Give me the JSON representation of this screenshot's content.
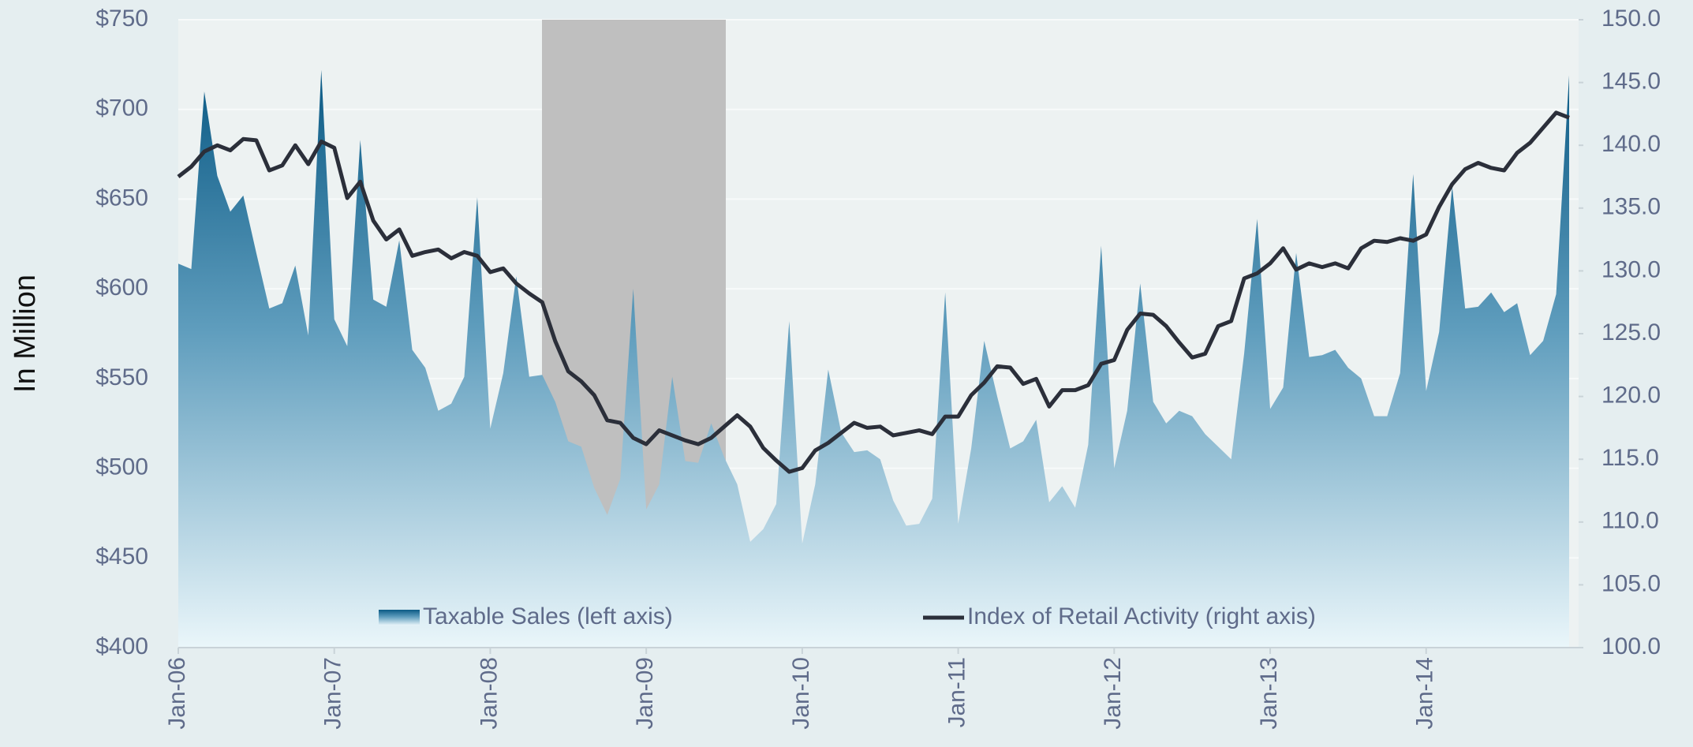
{
  "chart_data": {
    "type": "combo",
    "ylabel": "In Million",
    "categories": [
      "Jan-06",
      null,
      null,
      null,
      null,
      null,
      null,
      null,
      null,
      null,
      null,
      null,
      "Jan-07",
      null,
      null,
      null,
      null,
      null,
      null,
      null,
      null,
      null,
      null,
      null,
      "Jan-08",
      null,
      null,
      null,
      null,
      null,
      null,
      null,
      null,
      null,
      null,
      null,
      "Jan-09",
      null,
      null,
      null,
      null,
      null,
      null,
      null,
      null,
      null,
      null,
      null,
      "Jan-10",
      null,
      null,
      null,
      null,
      null,
      null,
      null,
      null,
      null,
      null,
      null,
      "Jan-11",
      null,
      null,
      null,
      null,
      null,
      null,
      null,
      null,
      null,
      null,
      null,
      "Jan-12",
      null,
      null,
      null,
      null,
      null,
      null,
      null,
      null,
      null,
      null,
      null,
      "Jan-13",
      null,
      null,
      null,
      null,
      null,
      null,
      null,
      null,
      null,
      null,
      null,
      "Jan-14",
      null,
      null,
      null,
      null,
      null,
      null,
      null,
      null,
      null,
      null,
      null
    ],
    "series": [
      {
        "name": "Taxable Sales (left axis)",
        "type": "area",
        "color": "#0b5a85",
        "axis": "y",
        "values": [
          614,
          611,
          710,
          663,
          643,
          652,
          620,
          589,
          592,
          613,
          574,
          722,
          583,
          568,
          683,
          594,
          590,
          627,
          566,
          556,
          532,
          536,
          551,
          651,
          522,
          553,
          607,
          551,
          552,
          537,
          515,
          512,
          489,
          474,
          494,
          600,
          477,
          491,
          551,
          504,
          503,
          525,
          506,
          491,
          459,
          466,
          480,
          582,
          458,
          491,
          555,
          520,
          509,
          510,
          505,
          482,
          468,
          469,
          483,
          598,
          469,
          511,
          571,
          540,
          511,
          515,
          527,
          481,
          490,
          478,
          513,
          624,
          500,
          532,
          603,
          537,
          525,
          532,
          529,
          519,
          512,
          505,
          564,
          639,
          533,
          545,
          620,
          562,
          563,
          566,
          556,
          550,
          529,
          529,
          553,
          664,
          543,
          576,
          657,
          589,
          590,
          598,
          587,
          592,
          563,
          571,
          597,
          719
        ]
      },
      {
        "name": "Index of Retail Activity (right axis)",
        "type": "line",
        "color": "#2b2f3a",
        "axis": "y2",
        "values": [
          137.5,
          138.3,
          139.5,
          140,
          139.6,
          140.5,
          140.4,
          138,
          138.4,
          140,
          138.5,
          140.3,
          139.8,
          135.8,
          137.1,
          134,
          132.5,
          133.3,
          131.2,
          131.5,
          131.7,
          131,
          131.5,
          131.2,
          129.9,
          130.2,
          129,
          128.2,
          127.5,
          124.4,
          122,
          121.2,
          120.1,
          118.1,
          117.9,
          116.7,
          116.2,
          117.3,
          116.9,
          116.5,
          116.2,
          116.7,
          117.6,
          118.5,
          117.6,
          115.9,
          114.9,
          114,
          114.3,
          115.7,
          116.3,
          117.1,
          117.9,
          117.5,
          117.6,
          116.9,
          117.1,
          117.3,
          117,
          118.4,
          118.4,
          120.1,
          121.1,
          122.4,
          122.3,
          121,
          121.4,
          119.2,
          120.5,
          120.5,
          120.9,
          122.6,
          122.9,
          125.3,
          126.6,
          126.5,
          125.6,
          124.3,
          123.1,
          123.4,
          125.6,
          126,
          129.4,
          129.8,
          130.6,
          131.8,
          130.1,
          130.6,
          130.3,
          130.6,
          130.2,
          131.8,
          132.4,
          132.3,
          132.6,
          132.4,
          132.9,
          135.1,
          136.9,
          138.1,
          138.6,
          138.2,
          138,
          139.4,
          140.2,
          141.4,
          142.6,
          142.2
        ]
      }
    ],
    "ylim": [
      400,
      750
    ],
    "yticks": [
      {
        "value": 400,
        "label": "$400"
      },
      {
        "value": 450,
        "label": "$450"
      },
      {
        "value": 500,
        "label": "$500"
      },
      {
        "value": 550,
        "label": "$550"
      },
      {
        "value": 600,
        "label": "$600"
      },
      {
        "value": 650,
        "label": "$650"
      },
      {
        "value": 700,
        "label": "$700"
      },
      {
        "value": 750,
        "label": "$750"
      }
    ],
    "y2lim": [
      100,
      150
    ],
    "y2ticks": [
      {
        "value": 100,
        "label": "100.0"
      },
      {
        "value": 105,
        "label": "105.0"
      },
      {
        "value": 110,
        "label": "110.0"
      },
      {
        "value": 115,
        "label": "115.0"
      },
      {
        "value": 120,
        "label": "120.0"
      },
      {
        "value": 125,
        "label": "125.0"
      },
      {
        "value": 130,
        "label": "130.0"
      },
      {
        "value": 135,
        "label": "135.0"
      },
      {
        "value": 140,
        "label": "140.0"
      },
      {
        "value": 145,
        "label": "145.0"
      },
      {
        "value": 150,
        "label": "150.0"
      }
    ],
    "grid": true,
    "legend": "bottom"
  }
}
